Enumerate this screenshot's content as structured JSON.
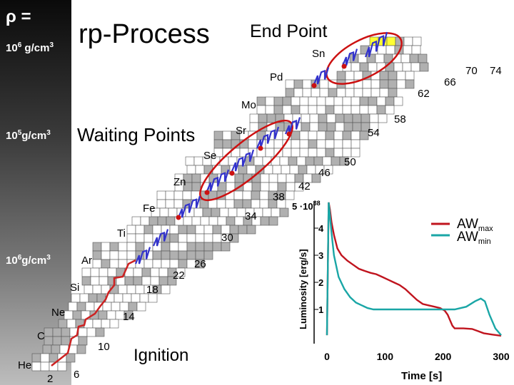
{
  "sidebar": {
    "rho_label": "ρ =",
    "density_top": {
      "base": "10",
      "exp": "6",
      "unit": " g/cm",
      "unit_exp": "3"
    },
    "density_mid": {
      "base": "10",
      "exp": "5",
      "unit": "g/cm",
      "unit_exp": "3"
    },
    "density_low": {
      "base": "10",
      "exp": "6",
      "unit": "g/cm",
      "unit_exp": "3"
    }
  },
  "header": {
    "title": "rp-Process",
    "end_point": "End Point",
    "waiting_points": "Waiting Points",
    "ignition": "Ignition"
  },
  "elements": [
    "Sn",
    "Pd",
    "Mo",
    "Sr",
    "Se",
    "Zn",
    "Fe",
    "Ti",
    "Ar",
    "Si",
    "Ne",
    "C",
    "He"
  ],
  "neutron_numbers": [
    "70",
    "74",
    "66",
    "62",
    "58",
    "54",
    "50",
    "46",
    "42",
    "38",
    "34",
    "30",
    "26",
    "22",
    "18",
    "14",
    "10",
    "6",
    "2"
  ],
  "colors": {
    "path": "#3333cc",
    "path_dot": "#cc1111",
    "ignition_path": "#cc2222",
    "ellipse": "#cc1111",
    "cell_stroke": "#555555",
    "cell_gray": "#b0b0b0",
    "cell_yellow": "#ffff33",
    "aw_max": "#c0141e",
    "aw_min": "#1aa6a6"
  },
  "chart_data": {
    "type": "line",
    "xlabel": "Time  [s]",
    "ylabel": "Luminosity  [erg/s]",
    "y_scale": {
      "mantissa": "5 ·10",
      "exp": "38"
    },
    "xlim": [
      0,
      300
    ],
    "ylim": [
      0,
      5
    ],
    "x_ticks": [
      "0",
      "100",
      "200",
      "300"
    ],
    "y_ticks": [
      "1",
      "2",
      "3",
      "4"
    ],
    "legend_position": "top-right",
    "series": [
      {
        "name": "AWmax",
        "name_base": "AW",
        "name_sub": "max",
        "x": [
          0,
          3,
          5,
          8,
          12,
          18,
          25,
          35,
          45,
          55,
          65,
          75,
          85,
          95,
          105,
          115,
          125,
          135,
          145,
          155,
          165,
          175,
          185,
          195,
          203,
          208,
          212,
          216,
          220,
          225,
          235,
          250,
          260,
          270,
          285,
          300
        ],
        "y": [
          0.05,
          4.95,
          4.7,
          4.2,
          3.75,
          3.25,
          3.0,
          2.8,
          2.65,
          2.5,
          2.42,
          2.35,
          2.3,
          2.2,
          2.1,
          2.0,
          1.9,
          1.75,
          1.55,
          1.35,
          1.2,
          1.15,
          1.1,
          1.05,
          0.95,
          0.8,
          0.6,
          0.4,
          0.3,
          0.3,
          0.3,
          0.28,
          0.2,
          0.12,
          0.07,
          0.03
        ]
      },
      {
        "name": "AWmin",
        "name_base": "AW",
        "name_sub": "min",
        "x": [
          0,
          3,
          5,
          8,
          12,
          20,
          30,
          40,
          50,
          60,
          70,
          80,
          90,
          100,
          120,
          140,
          160,
          180,
          200,
          220,
          240,
          255,
          265,
          272,
          280,
          290,
          300
        ],
        "y": [
          0.05,
          4.95,
          4.5,
          3.8,
          3.0,
          2.2,
          1.75,
          1.45,
          1.25,
          1.15,
          1.05,
          1.0,
          1.0,
          1.0,
          1.0,
          1.0,
          1.0,
          1.0,
          1.0,
          1.0,
          1.1,
          1.3,
          1.4,
          1.3,
          0.8,
          0.3,
          0.05
        ]
      }
    ]
  }
}
